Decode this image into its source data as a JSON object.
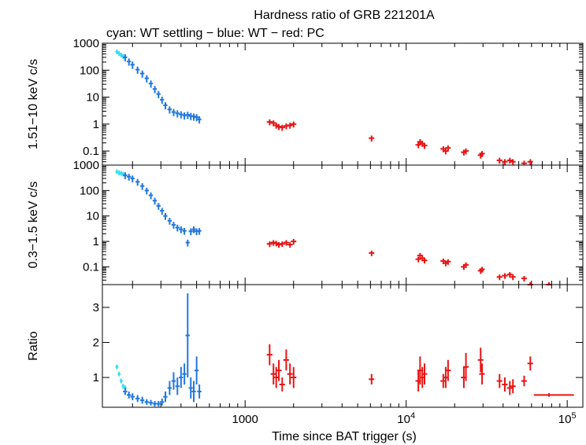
{
  "title": "Hardness ratio of GRB 221201A",
  "subtitle": "cyan: WT settling − blue: WT − red: PC",
  "xlabel": "Time since BAT trigger (s)",
  "colors": {
    "wt_settling": "#33e0f0",
    "wt": "#1f78e0",
    "pc": "#e81414",
    "axes": "#000000"
  },
  "x_ticks": [
    {
      "value": 1000,
      "label": "1000"
    },
    {
      "value": 10000,
      "label": "10",
      "sup": "4"
    },
    {
      "value": 100000,
      "label": "10",
      "sup": "5"
    }
  ],
  "chart_data": [
    {
      "type": "scatter",
      "panel": "top",
      "ylabel": "1.51−10 keV c/s",
      "xscale": "log",
      "yscale": "log",
      "xlim": [
        130,
        125000
      ],
      "ylim": [
        0.03,
        1000
      ],
      "yticks": [
        {
          "value": 1000,
          "label": "1000"
        },
        {
          "value": 100,
          "label": "100"
        },
        {
          "value": 10,
          "label": "10"
        },
        {
          "value": 1,
          "label": "1"
        },
        {
          "value": 0.1,
          "label": "0.1"
        }
      ],
      "series": [
        {
          "key": "wt_settling",
          "x": [
            160,
            165,
            170,
            175,
            180
          ],
          "y": [
            480,
            420,
            360,
            320,
            300
          ]
        },
        {
          "key": "wt",
          "x": [
            180,
            190,
            200,
            215,
            230,
            245,
            260,
            275,
            290,
            305,
            320,
            340,
            360,
            380,
            400,
            420,
            440,
            460,
            480,
            500,
            520
          ],
          "y": [
            300,
            210,
            160,
            105,
            75,
            50,
            32,
            20,
            13,
            8,
            5,
            3.5,
            2.8,
            2.5,
            2.3,
            2.1,
            2.2,
            2.0,
            1.9,
            1.8,
            1.5
          ],
          "xerr_frac": 0.03,
          "yerr_frac": 0.3
        },
        {
          "key": "pc",
          "x": [
            1420,
            1500,
            1560,
            1620,
            1700,
            1800,
            1900,
            2000,
            6100,
            11900,
            12200,
            12600,
            13000,
            17000,
            17600,
            18200,
            22800,
            23500,
            29000,
            29600,
            38000,
            41000,
            44000,
            46000,
            54000,
            59000
          ],
          "y": [
            1.2,
            1.1,
            0.9,
            0.8,
            0.75,
            0.85,
            0.9,
            1.0,
            0.3,
            0.17,
            0.22,
            0.19,
            0.16,
            0.12,
            0.1,
            0.13,
            0.09,
            0.1,
            0.07,
            0.08,
            0.045,
            0.04,
            0.045,
            0.04,
            0.035,
            0.04
          ],
          "xerr_frac": 0.04,
          "yerr_frac": 0.25
        }
      ]
    },
    {
      "type": "scatter",
      "panel": "middle",
      "ylabel": "0.3−1.5 keV c/s",
      "xscale": "log",
      "yscale": "log",
      "xlim": [
        130,
        125000
      ],
      "ylim": [
        0.02,
        1000
      ],
      "yticks": [
        {
          "value": 1000,
          "label": "1000"
        },
        {
          "value": 100,
          "label": "100"
        },
        {
          "value": 10,
          "label": "10"
        },
        {
          "value": 1,
          "label": "1"
        },
        {
          "value": 0.1,
          "label": "0.1"
        }
      ],
      "series": [
        {
          "key": "wt_settling",
          "x": [
            160,
            165,
            170,
            175,
            180
          ],
          "y": [
            550,
            500,
            470,
            440,
            400
          ]
        },
        {
          "key": "wt",
          "x": [
            180,
            190,
            200,
            215,
            230,
            245,
            260,
            275,
            290,
            305,
            320,
            340,
            360,
            380,
            400,
            420,
            440,
            460,
            480,
            500,
            520
          ],
          "y": [
            400,
            350,
            300,
            220,
            150,
            100,
            65,
            40,
            25,
            16,
            10,
            6.5,
            4.5,
            3.5,
            3.0,
            2.6,
            0.9,
            2.5,
            3.0,
            2.5,
            2.6
          ],
          "xerr_frac": 0.03,
          "yerr_frac": 0.3
        },
        {
          "key": "pc",
          "x": [
            1420,
            1500,
            1560,
            1620,
            1700,
            1800,
            1900,
            2000,
            6100,
            11900,
            12200,
            12600,
            13000,
            17000,
            17600,
            18200,
            22800,
            23500,
            29000,
            29600,
            38000,
            41000,
            44000,
            46000,
            54000,
            59000,
            77000
          ],
          "y": [
            0.8,
            0.9,
            0.85,
            0.75,
            0.8,
            0.9,
            0.75,
            1.0,
            0.35,
            0.2,
            0.28,
            0.22,
            0.18,
            0.17,
            0.14,
            0.16,
            0.1,
            0.12,
            0.07,
            0.08,
            0.04,
            0.045,
            0.05,
            0.04,
            0.035,
            0.02,
            0.02
          ],
          "xerr_frac": 0.04,
          "yerr_frac": 0.25
        }
      ]
    },
    {
      "type": "scatter",
      "panel": "bottom",
      "ylabel": "Ratio",
      "xscale": "log",
      "yscale": "linear",
      "xlim": [
        130,
        125000
      ],
      "ylim": [
        0.15,
        3.65
      ],
      "yticks": [
        {
          "value": 3,
          "label": "3"
        },
        {
          "value": 2,
          "label": "2"
        },
        {
          "value": 1,
          "label": "1"
        }
      ],
      "series": [
        {
          "key": "wt_settling",
          "x": [
            160,
            165,
            170,
            175,
            180
          ],
          "y": [
            1.3,
            1.1,
            0.9,
            0.75,
            0.7
          ]
        },
        {
          "key": "wt",
          "x": [
            180,
            190,
            200,
            215,
            230,
            245,
            260,
            275,
            290,
            305,
            320,
            340,
            360,
            380,
            400,
            420,
            440,
            460,
            480,
            500,
            520
          ],
          "y": [
            0.6,
            0.5,
            0.45,
            0.4,
            0.35,
            0.3,
            0.28,
            0.25,
            0.25,
            0.3,
            0.45,
            0.7,
            0.9,
            0.75,
            1.0,
            1.1,
            2.2,
            0.7,
            0.6,
            1.2,
            0.6
          ],
          "xerr_frac": 0.03,
          "yerr": [
            0.1,
            0.1,
            0.1,
            0.1,
            0.1,
            0.08,
            0.08,
            0.08,
            0.08,
            0.1,
            0.15,
            0.2,
            0.25,
            0.25,
            0.3,
            0.3,
            1.2,
            0.3,
            0.3,
            0.4,
            0.2
          ]
        },
        {
          "key": "pc",
          "x": [
            1420,
            1500,
            1560,
            1620,
            1700,
            1800,
            1900,
            2000,
            6100,
            11900,
            12200,
            12600,
            13000,
            17000,
            17600,
            18200,
            22800,
            23500,
            29000,
            29600,
            38000,
            41000,
            44000,
            46000,
            54000,
            59000,
            77000
          ],
          "y": [
            1.65,
            1.1,
            1.0,
            1.2,
            0.8,
            1.5,
            1.1,
            1.0,
            0.95,
            0.9,
            1.2,
            1.0,
            1.1,
            0.9,
            1.0,
            1.2,
            1.0,
            1.3,
            1.5,
            1.1,
            0.9,
            0.8,
            0.7,
            0.75,
            0.9,
            1.4,
            0.5
          ],
          "xerr_frac": 0.04,
          "yerr": [
            0.3,
            0.3,
            0.3,
            0.3,
            0.2,
            0.3,
            0.3,
            0.3,
            0.15,
            0.3,
            0.4,
            0.3,
            0.3,
            0.2,
            0.3,
            0.3,
            0.3,
            0.4,
            0.35,
            0.3,
            0.2,
            0.2,
            0.2,
            0.2,
            0.15,
            0.2,
            0.05
          ],
          "xerr": [
            [],
            [],
            [],
            [],
            [],
            [],
            [],
            [],
            [],
            [],
            [],
            [],
            [],
            [],
            [],
            [],
            [],
            [],
            [],
            [],
            [],
            [],
            [],
            [],
            [],
            [],
            [
              62000,
              110000
            ]
          ]
        }
      ]
    }
  ]
}
